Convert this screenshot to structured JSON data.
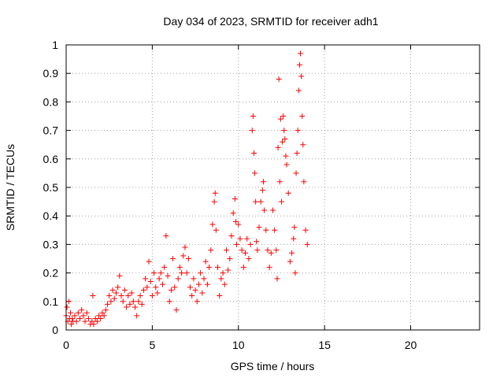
{
  "chart_data": {
    "type": "scatter",
    "title": "Day 034 of 2023, SRMTID for receiver adh1",
    "xlabel": "GPS time / hours",
    "ylabel": "SRMTID / TECUs",
    "xlim": [
      0,
      24
    ],
    "ylim": [
      0,
      1
    ],
    "grid": true,
    "marker": "+",
    "color": "#ff0000",
    "x_ticks": [
      {
        "value": 0,
        "label": "0"
      },
      {
        "value": 5,
        "label": "5"
      },
      {
        "value": 10,
        "label": "10"
      },
      {
        "value": 15,
        "label": "15"
      },
      {
        "value": 20,
        "label": "20"
      }
    ],
    "y_ticks": [
      {
        "value": 0,
        "label": "0"
      },
      {
        "value": 0.1,
        "label": "0.1"
      },
      {
        "value": 0.2,
        "label": "0.2"
      },
      {
        "value": 0.3,
        "label": "0.3"
      },
      {
        "value": 0.4,
        "label": "0.4"
      },
      {
        "value": 0.5,
        "label": "0.5"
      },
      {
        "value": 0.6,
        "label": "0.6"
      },
      {
        "value": 0.7,
        "label": "0.7"
      },
      {
        "value": 0.8,
        "label": "0.8"
      },
      {
        "value": 0.9,
        "label": "0.9"
      },
      {
        "value": 1,
        "label": "1"
      }
    ],
    "series": [
      {
        "name": "adh1",
        "points": [
          [
            0.0,
            0.05
          ],
          [
            0.05,
            0.08
          ],
          [
            0.1,
            0.03
          ],
          [
            0.15,
            0.1
          ],
          [
            0.2,
            0.04
          ],
          [
            0.25,
            0.06
          ],
          [
            0.3,
            0.02
          ],
          [
            0.35,
            0.04
          ],
          [
            0.4,
            0.03
          ],
          [
            0.5,
            0.05
          ],
          [
            0.6,
            0.03
          ],
          [
            0.7,
            0.06
          ],
          [
            0.8,
            0.04
          ],
          [
            0.9,
            0.07
          ],
          [
            1.0,
            0.05
          ],
          [
            1.1,
            0.03
          ],
          [
            1.2,
            0.06
          ],
          [
            1.3,
            0.04
          ],
          [
            1.4,
            0.02
          ],
          [
            1.5,
            0.03
          ],
          [
            1.55,
            0.12
          ],
          [
            1.6,
            0.02
          ],
          [
            1.7,
            0.04
          ],
          [
            1.8,
            0.03
          ],
          [
            1.9,
            0.05
          ],
          [
            2.0,
            0.04
          ],
          [
            2.1,
            0.06
          ],
          [
            2.2,
            0.05
          ],
          [
            2.3,
            0.07
          ],
          [
            2.4,
            0.09
          ],
          [
            2.5,
            0.12
          ],
          [
            2.6,
            0.1
          ],
          [
            2.7,
            0.14
          ],
          [
            2.8,
            0.11
          ],
          [
            2.9,
            0.13
          ],
          [
            3.0,
            0.15
          ],
          [
            3.1,
            0.19
          ],
          [
            3.2,
            0.12
          ],
          [
            3.3,
            0.1
          ],
          [
            3.4,
            0.14
          ],
          [
            3.5,
            0.08
          ],
          [
            3.6,
            0.12
          ],
          [
            3.7,
            0.09
          ],
          [
            3.8,
            0.13
          ],
          [
            3.9,
            0.1
          ],
          [
            4.0,
            0.08
          ],
          [
            4.1,
            0.05
          ],
          [
            4.2,
            0.1
          ],
          [
            4.3,
            0.12
          ],
          [
            4.4,
            0.09
          ],
          [
            4.5,
            0.14
          ],
          [
            4.6,
            0.18
          ],
          [
            4.7,
            0.15
          ],
          [
            4.8,
            0.24
          ],
          [
            4.9,
            0.17
          ],
          [
            5.0,
            0.12
          ],
          [
            5.1,
            0.2
          ],
          [
            5.2,
            0.15
          ],
          [
            5.3,
            0.13
          ],
          [
            5.4,
            0.18
          ],
          [
            5.5,
            0.2
          ],
          [
            5.6,
            0.16
          ],
          [
            5.7,
            0.22
          ],
          [
            5.8,
            0.33
          ],
          [
            5.9,
            0.19
          ],
          [
            6.0,
            0.1
          ],
          [
            6.1,
            0.14
          ],
          [
            6.2,
            0.25
          ],
          [
            6.3,
            0.15
          ],
          [
            6.4,
            0.07
          ],
          [
            6.5,
            0.18
          ],
          [
            6.6,
            0.22
          ],
          [
            6.7,
            0.2
          ],
          [
            6.8,
            0.26
          ],
          [
            6.9,
            0.29
          ],
          [
            7.0,
            0.2
          ],
          [
            7.1,
            0.25
          ],
          [
            7.2,
            0.15
          ],
          [
            7.3,
            0.12
          ],
          [
            7.4,
            0.18
          ],
          [
            7.5,
            0.14
          ],
          [
            7.6,
            0.1
          ],
          [
            7.7,
            0.16
          ],
          [
            7.8,
            0.2
          ],
          [
            7.9,
            0.13
          ],
          [
            8.0,
            0.18
          ],
          [
            8.1,
            0.24
          ],
          [
            8.2,
            0.16
          ],
          [
            8.3,
            0.22
          ],
          [
            8.4,
            0.28
          ],
          [
            8.5,
            0.37
          ],
          [
            8.6,
            0.45
          ],
          [
            8.65,
            0.48
          ],
          [
            8.7,
            0.35
          ],
          [
            8.8,
            0.22
          ],
          [
            8.9,
            0.12
          ],
          [
            9.0,
            0.18
          ],
          [
            9.1,
            0.2
          ],
          [
            9.2,
            0.16
          ],
          [
            9.3,
            0.28
          ],
          [
            9.4,
            0.21
          ],
          [
            9.5,
            0.25
          ],
          [
            9.6,
            0.33
          ],
          [
            9.7,
            0.41
          ],
          [
            9.8,
            0.46
          ],
          [
            9.85,
            0.38
          ],
          [
            9.9,
            0.3
          ],
          [
            10.0,
            0.37
          ],
          [
            10.1,
            0.32
          ],
          [
            10.2,
            0.28
          ],
          [
            10.3,
            0.22
          ],
          [
            10.4,
            0.27
          ],
          [
            10.5,
            0.32
          ],
          [
            10.6,
            0.25
          ],
          [
            10.7,
            0.3
          ],
          [
            10.8,
            0.7
          ],
          [
            10.85,
            0.75
          ],
          [
            10.9,
            0.62
          ],
          [
            10.95,
            0.55
          ],
          [
            11.0,
            0.45
          ],
          [
            11.05,
            0.31
          ],
          [
            11.1,
            0.28
          ],
          [
            11.2,
            0.36
          ],
          [
            11.3,
            0.45
          ],
          [
            11.4,
            0.49
          ],
          [
            11.45,
            0.52
          ],
          [
            11.5,
            0.42
          ],
          [
            11.6,
            0.35
          ],
          [
            11.7,
            0.28
          ],
          [
            11.8,
            0.22
          ],
          [
            11.9,
            0.27
          ],
          [
            12.0,
            0.42
          ],
          [
            12.1,
            0.35
          ],
          [
            12.2,
            0.28
          ],
          [
            12.25,
            0.18
          ],
          [
            12.3,
            0.64
          ],
          [
            12.35,
            0.88
          ],
          [
            12.4,
            0.52
          ],
          [
            12.45,
            0.74
          ],
          [
            12.5,
            0.45
          ],
          [
            12.55,
            0.66
          ],
          [
            12.6,
            0.75
          ],
          [
            12.65,
            0.7
          ],
          [
            12.7,
            0.67
          ],
          [
            12.75,
            0.61
          ],
          [
            12.8,
            0.58
          ],
          [
            12.9,
            0.48
          ],
          [
            13.0,
            0.24
          ],
          [
            13.1,
            0.27
          ],
          [
            13.2,
            0.32
          ],
          [
            13.25,
            0.36
          ],
          [
            13.3,
            0.2
          ],
          [
            13.35,
            0.55
          ],
          [
            13.4,
            0.62
          ],
          [
            13.45,
            0.7
          ],
          [
            13.5,
            0.84
          ],
          [
            13.55,
            0.93
          ],
          [
            13.6,
            0.97
          ],
          [
            13.65,
            0.89
          ],
          [
            13.7,
            0.75
          ],
          [
            13.75,
            0.65
          ],
          [
            13.8,
            0.52
          ],
          [
            13.9,
            0.35
          ],
          [
            14.0,
            0.3
          ]
        ]
      }
    ]
  }
}
